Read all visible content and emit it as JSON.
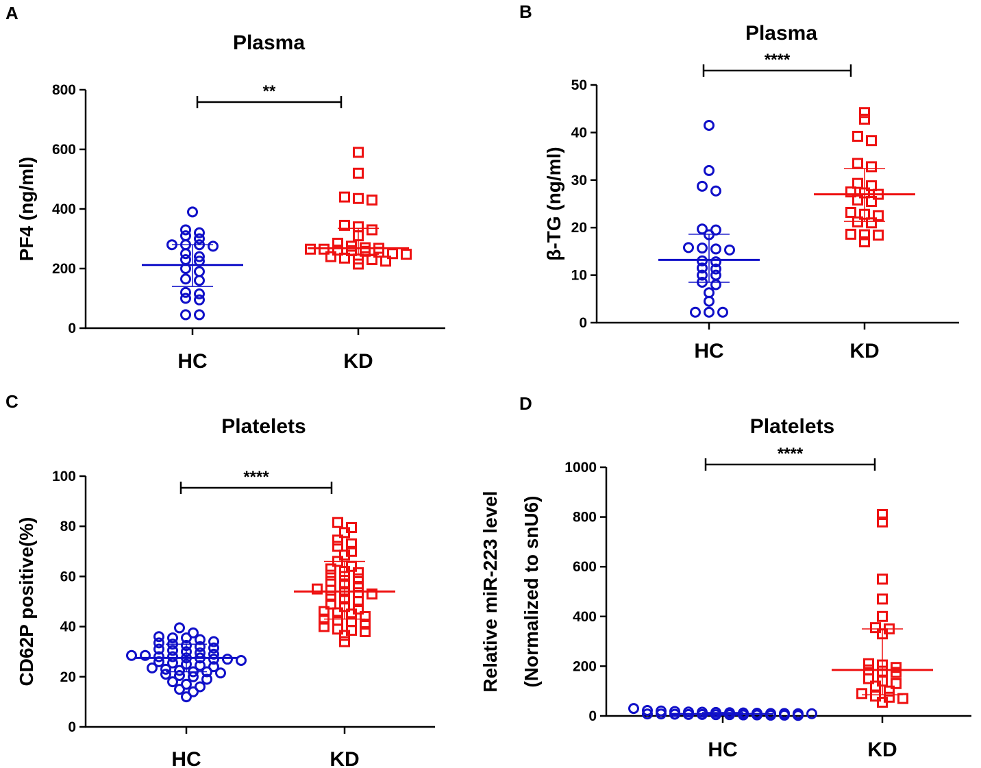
{
  "colors": {
    "HC": "#1010c8",
    "KD": "#ee1111",
    "axis": "#000000"
  },
  "chart_data": [
    {
      "panel": "A",
      "type": "scatter",
      "title": "Plasma",
      "ylabel": "PF4 (ng/ml)",
      "xlabel": "",
      "categories": [
        "HC",
        "KD"
      ],
      "ylim": [
        0,
        800
      ],
      "yticks": [
        "0",
        "200",
        "400",
        "600",
        "800"
      ],
      "significance": "**",
      "series": [
        {
          "name": "HC",
          "marker": "circle",
          "values": [
            390,
            330,
            320,
            310,
            300,
            280,
            280,
            280,
            275,
            250,
            240,
            230,
            225,
            200,
            190,
            165,
            160,
            120,
            115,
            100,
            95,
            45,
            45
          ],
          "median": 212,
          "iqr": [
            140,
            280
          ]
        },
        {
          "name": "KD",
          "marker": "square",
          "values": [
            590,
            520,
            440,
            435,
            430,
            345,
            340,
            330,
            310,
            285,
            275,
            270,
            268,
            265,
            265,
            262,
            260,
            258,
            255,
            250,
            248,
            240,
            235,
            232,
            230,
            225,
            215
          ],
          "median": 268,
          "iqr": [
            248,
            335
          ]
        }
      ]
    },
    {
      "panel": "B",
      "type": "scatter",
      "title": "Plasma",
      "ylabel": "β-TG (ng/ml)",
      "xlabel": "",
      "categories": [
        "HC",
        "KD"
      ],
      "ylim": [
        0,
        50
      ],
      "yticks": [
        "0",
        "10",
        "20",
        "30",
        "40",
        "50"
      ],
      "significance": "****",
      "series": [
        {
          "name": "HC",
          "marker": "circle",
          "values": [
            41.5,
            32,
            28.7,
            27.7,
            19.7,
            19.5,
            18.5,
            15.8,
            15.7,
            15.5,
            15.3,
            13,
            12.8,
            11.5,
            11.3,
            10,
            10,
            8.5,
            8,
            6.3,
            4.5,
            2.2,
            2.2,
            2.2
          ],
          "median": 13.2,
          "iqr": [
            8.5,
            18.6
          ]
        },
        {
          "name": "KD",
          "marker": "square",
          "values": [
            44.2,
            42.8,
            39.2,
            38.3,
            33.5,
            32.8,
            29.3,
            28.8,
            27.5,
            27.3,
            27,
            25.8,
            25.5,
            23.2,
            22.8,
            22.5,
            21.2,
            21,
            18.6,
            18.5,
            18.4,
            17.0
          ],
          "median": 27,
          "iqr": [
            21.3,
            32.4
          ]
        }
      ]
    },
    {
      "panel": "C",
      "type": "scatter",
      "title": "Platelets",
      "ylabel": "CD62P positive(%)",
      "xlabel": "",
      "categories": [
        "HC",
        "KD"
      ],
      "ylim": [
        0,
        100
      ],
      "yticks": [
        "0",
        "20",
        "40",
        "60",
        "80",
        "100"
      ],
      "significance": "****",
      "series": [
        {
          "name": "HC",
          "marker": "circle",
          "values": [
            39.5,
            37.5,
            36,
            35.5,
            35.5,
            34.8,
            34,
            33.5,
            33,
            32.5,
            32,
            31.5,
            31,
            30.5,
            30,
            29.5,
            29,
            28.5,
            28.5,
            28,
            28,
            27.5,
            27.5,
            27,
            27,
            26.5,
            26,
            25.5,
            25,
            24.5,
            24,
            23.5,
            23,
            22.5,
            22,
            22,
            21.5,
            21,
            20.5,
            20,
            19,
            18,
            17,
            16,
            15,
            14,
            12
          ],
          "median": 27.5,
          "iqr": [
            22,
            33
          ]
        },
        {
          "name": "KD",
          "marker": "square",
          "values": [
            81.5,
            79.5,
            77.5,
            74.5,
            73,
            72,
            70,
            68.5,
            66,
            64,
            63,
            62,
            61.5,
            60.5,
            60,
            59,
            58,
            57,
            56,
            55,
            54.5,
            54,
            53.5,
            53,
            52,
            51,
            50,
            49,
            48,
            47,
            46,
            45.5,
            45,
            44,
            43,
            42.5,
            42,
            41,
            40,
            39,
            38.5,
            38,
            36.5,
            34
          ],
          "median": 54,
          "iqr": [
            43,
            66
          ]
        }
      ]
    },
    {
      "panel": "D",
      "type": "scatter",
      "title": "Platelets",
      "ylabel": "Relative miR-223 level",
      "ylabel2": "(Normalized to snU6)",
      "xlabel": "",
      "categories": [
        "HC",
        "KD"
      ],
      "ylim": [
        0,
        1000
      ],
      "yticks": [
        "0",
        "200",
        "400",
        "600",
        "800",
        "1000"
      ],
      "significance": "****",
      "series": [
        {
          "name": "HC",
          "marker": "circle",
          "values": [
            30,
            22,
            20,
            18,
            16,
            15,
            14,
            13,
            12,
            11,
            10,
            10,
            9,
            9,
            8,
            8,
            7,
            6,
            6,
            5,
            5,
            4,
            4,
            3,
            3,
            2
          ],
          "median": 8,
          "iqr": [
            3,
            14
          ]
        },
        {
          "name": "KD",
          "marker": "square",
          "values": [
            810,
            780,
            550,
            470,
            400,
            355,
            350,
            330,
            210,
            205,
            195,
            185,
            180,
            175,
            150,
            140,
            130,
            120,
            100,
            90,
            80,
            75,
            70,
            55
          ],
          "median": 185,
          "iqr": [
            85,
            350
          ]
        }
      ]
    }
  ]
}
